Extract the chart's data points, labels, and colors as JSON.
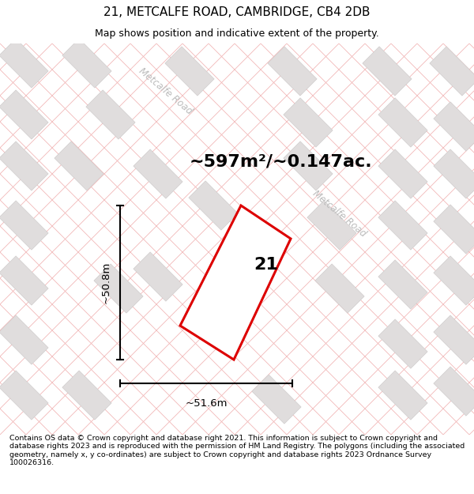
{
  "title": "21, METCALFE ROAD, CAMBRIDGE, CB4 2DB",
  "subtitle": "Map shows position and indicative extent of the property.",
  "area_text": "~597m²/~0.147ac.",
  "plot_number": "21",
  "dim_width": "~51.6m",
  "dim_height": "~50.8m",
  "road_label_1": "Metcalfe Road",
  "road_label_2": "Metcalfe Road",
  "footer": "Contains OS data © Crown copyright and database right 2021. This information is subject to Crown copyright and database rights 2023 and is reproduced with the permission of HM Land Registry. The polygons (including the associated geometry, namely x, y co-ordinates) are subject to Crown copyright and database rights 2023 Ordnance Survey 100026316.",
  "bg_color": "#f8f7f7",
  "map_bg": "#f8f7f7",
  "plot_color": "#dd0000",
  "plot_fill": "white",
  "grid_line_color": "#f2b8b8",
  "building_color": "#e0dddd",
  "building_edge": "#d0cccc",
  "title_fontsize": 11,
  "subtitle_fontsize": 9,
  "area_fontsize": 16,
  "footer_fontsize": 6.8,
  "road_color": "#c8c8c8",
  "road_fontsize": 8.5,
  "dim_fontsize": 9.5
}
